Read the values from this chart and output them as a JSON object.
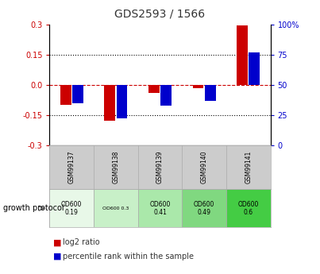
{
  "title": "GDS2593 / 1566",
  "samples": [
    "GSM99137",
    "GSM99138",
    "GSM99139",
    "GSM99140",
    "GSM99141"
  ],
  "log2_ratio": [
    -0.1,
    -0.18,
    -0.04,
    -0.015,
    0.295
  ],
  "pct_rank": [
    35,
    22,
    33,
    37,
    77
  ],
  "growth_protocol_labels": [
    "OD600\n0.19",
    "OD600 0.3",
    "OD600\n0.41",
    "OD600\n0.49",
    "OD600\n0.6"
  ],
  "growth_protocol_colors": [
    "#e8f8e8",
    "#c8f0c8",
    "#aae8aa",
    "#80d880",
    "#44cc44"
  ],
  "ylim": [
    -0.3,
    0.3
  ],
  "yticks_left": [
    -0.3,
    -0.15,
    0.0,
    0.15,
    0.3
  ],
  "yticks_right": [
    0,
    25,
    50,
    75,
    100
  ],
  "bar_color_red": "#cc0000",
  "bar_color_blue": "#0000cc",
  "dashed_line_color": "#cc0000",
  "dotted_line_color": "#000000",
  "bg_color": "#ffffff",
  "title_color": "#333333",
  "sample_header_color": "#cccccc"
}
